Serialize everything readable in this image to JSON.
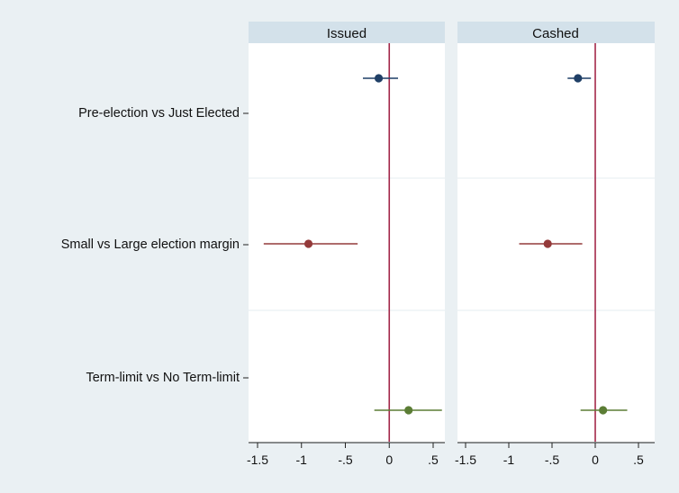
{
  "chart_data": {
    "type": "scatter",
    "subtype": "coefficient-plot",
    "categories": [
      "Pre-election  vs Just Elected",
      "Small vs Large election margin",
      "Term-limit vs No Term-limit"
    ],
    "xlim": [
      -1.6,
      0.6
    ],
    "xticks": [
      -1.5,
      -1,
      -0.5,
      0,
      0.5
    ],
    "xtick_labels": [
      "-1.5",
      "-1",
      "-.5",
      "0",
      ".5"
    ],
    "reference_line": 0,
    "series_colors": [
      "#1f3f66",
      "#943a3a",
      "#5b7d35"
    ],
    "reference_color": "#a3284a",
    "panels": [
      {
        "title": "Issued",
        "points": [
          {
            "estimate": -0.12,
            "ci": [
              -0.3,
              0.1
            ]
          },
          {
            "estimate": -0.92,
            "ci": [
              -1.43,
              -0.36
            ]
          },
          {
            "estimate": 0.22,
            "ci": [
              -0.17,
              0.6
            ]
          }
        ]
      },
      {
        "title": "Cashed",
        "points": [
          {
            "estimate": -0.2,
            "ci": [
              -0.32,
              -0.05
            ]
          },
          {
            "estimate": -0.55,
            "ci": [
              -0.88,
              -0.15
            ]
          },
          {
            "estimate": 0.09,
            "ci": [
              -0.17,
              0.37
            ]
          }
        ]
      }
    ]
  }
}
